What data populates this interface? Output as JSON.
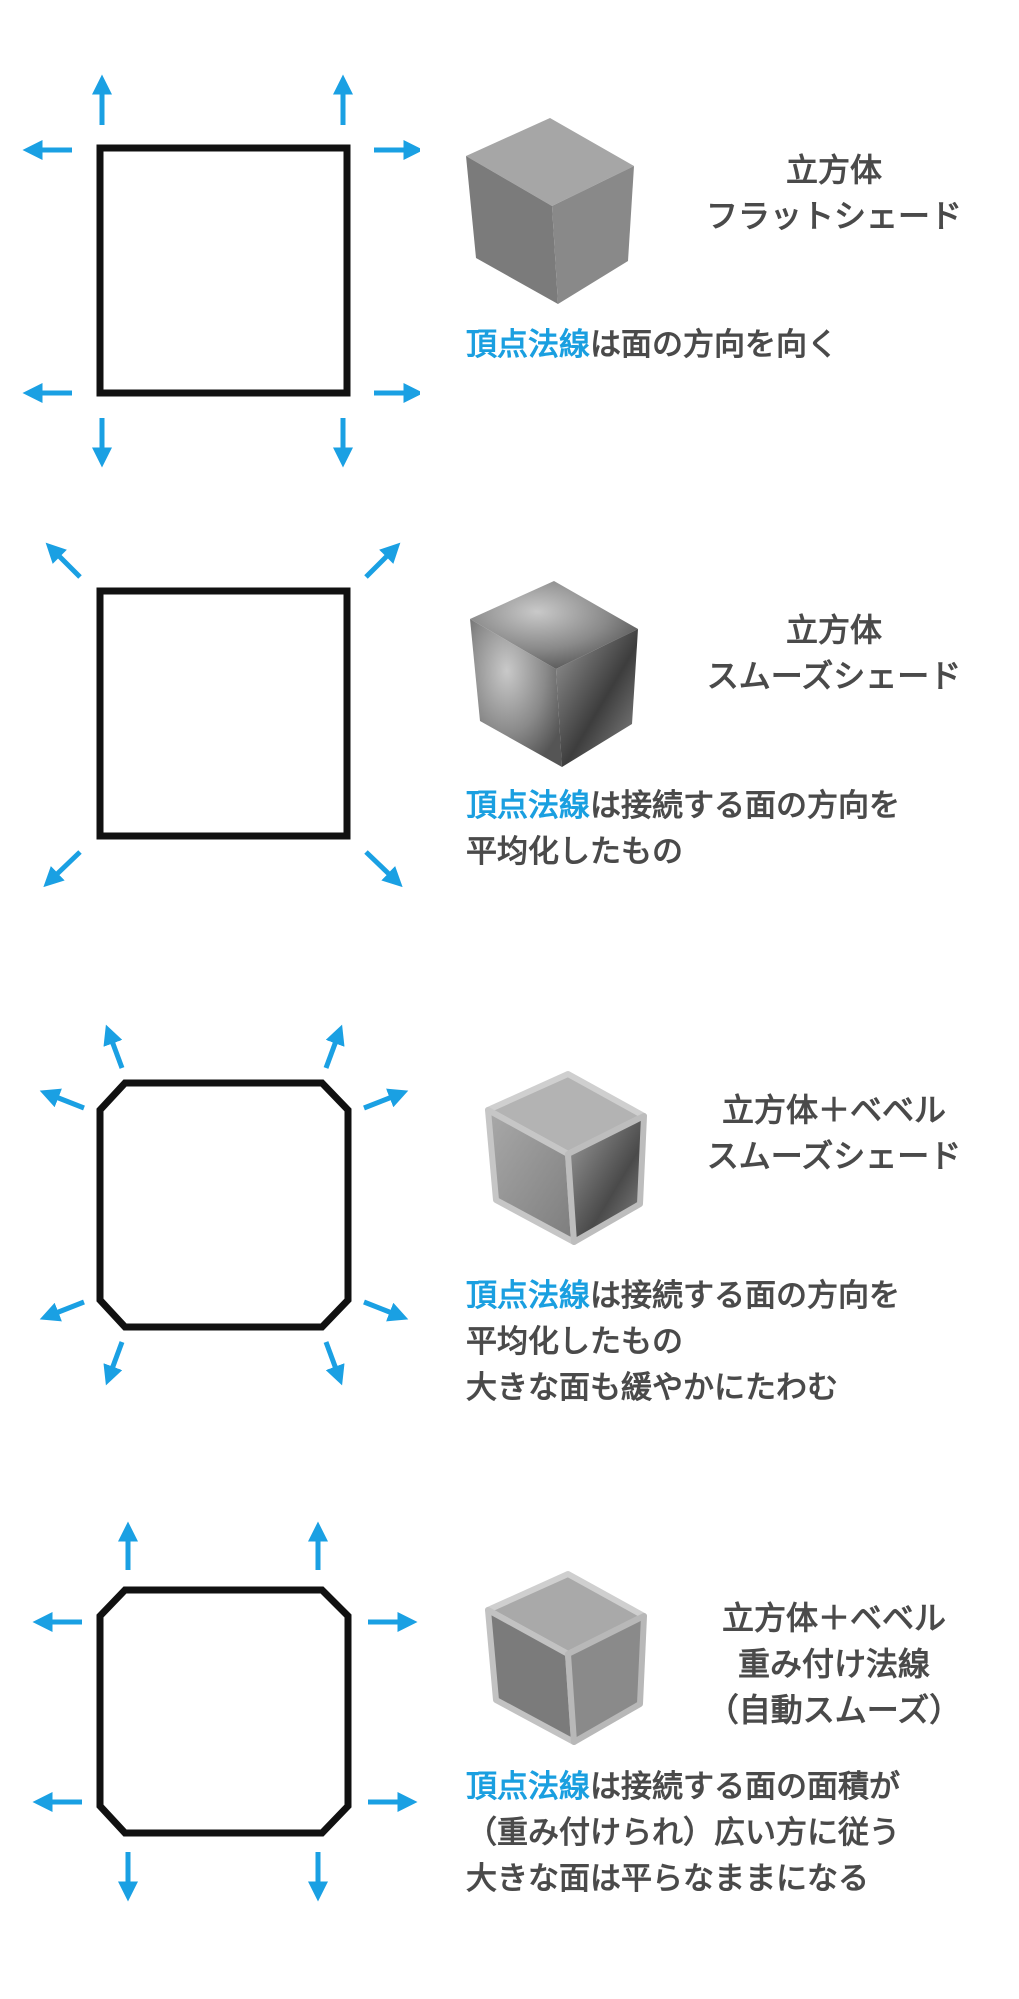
{
  "colors": {
    "arrow": "#1aa0e3",
    "highlight": "#1a9fe0",
    "text": "#4a4a4a",
    "outline": "#111111"
  },
  "panels": [
    {
      "title_lines": [
        "立方体",
        "フラットシェード"
      ],
      "desc_highlight": "頂点法線",
      "desc_first_rest": "は面の方向を向く",
      "desc_more": []
    },
    {
      "title_lines": [
        "立方体",
        "スムーズシェード"
      ],
      "desc_highlight": "頂点法線",
      "desc_first_rest": "は接続する面の方向を",
      "desc_more": [
        "平均化したもの"
      ]
    },
    {
      "title_lines": [
        "立方体＋ベベル",
        "スムーズシェード"
      ],
      "desc_highlight": "頂点法線",
      "desc_first_rest": "は接続する面の方向を",
      "desc_more": [
        "平均化したもの",
        "大きな面も緩やかにたわむ"
      ]
    },
    {
      "title_lines": [
        "立方体＋ベベル",
        "重み付け法線",
        "（自動スムーズ）"
      ],
      "desc_highlight": "頂点法線",
      "desc_first_rest": "は接続する面の面積が",
      "desc_more": [
        "（重み付けられ）広い方に従う",
        "大きな面は平らなままになる"
      ]
    }
  ]
}
